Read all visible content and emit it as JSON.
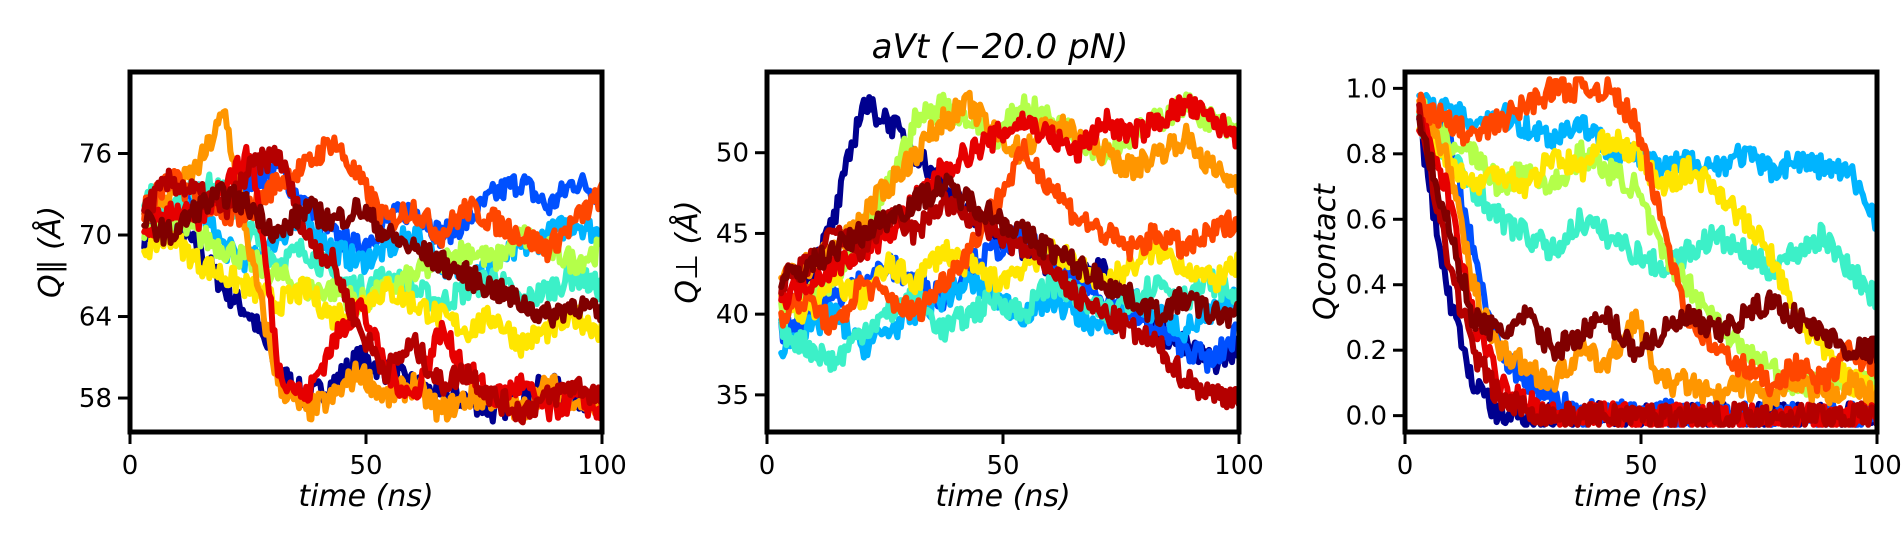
{
  "figure": {
    "title": "aVt (−20.0 pN)"
  },
  "chart_data": [
    {
      "type": "line",
      "title": "",
      "xlabel": "time (ns)",
      "ylabel": "Q∥ (Å)",
      "xlim": [
        0,
        100
      ],
      "ylim": [
        55.5,
        82
      ],
      "xticks": [
        0,
        50,
        100
      ],
      "yticks": [
        58,
        64,
        70,
        76
      ],
      "grid": false,
      "series": [
        {
          "color": "#00008f",
          "values": [
            70,
            71,
            69,
            66,
            64,
            60,
            58,
            59,
            61,
            60,
            59,
            58,
            58,
            57,
            58,
            59,
            58,
            58
          ]
        },
        {
          "color": "#0050ff",
          "values": [
            71,
            70,
            73,
            72,
            74,
            75,
            72,
            70,
            69,
            71,
            72,
            70,
            71,
            73,
            74,
            72,
            74,
            73
          ]
        },
        {
          "color": "#00b4ff",
          "values": [
            72,
            71,
            72,
            69,
            68,
            70,
            71,
            69,
            68,
            69,
            70,
            68,
            67,
            68,
            69,
            70,
            71,
            70
          ]
        },
        {
          "color": "#3cf0c8",
          "values": [
            73,
            72,
            74,
            73,
            70,
            68,
            69,
            67,
            66,
            67,
            66,
            65,
            66,
            67,
            65,
            66,
            67,
            66
          ]
        },
        {
          "color": "#b4ff4a",
          "values": [
            70,
            71,
            70,
            69,
            68,
            67,
            66,
            66,
            65,
            66,
            67,
            68,
            69,
            68,
            70,
            69,
            68,
            69
          ]
        },
        {
          "color": "#ffe600",
          "values": [
            69,
            70,
            68,
            67,
            66,
            65,
            66,
            64,
            65,
            66,
            65,
            64,
            63,
            64,
            62,
            63,
            64,
            63
          ]
        },
        {
          "color": "#ff9600",
          "values": [
            71,
            73,
            75,
            79,
            68,
            59,
            57,
            58,
            60,
            58,
            59,
            57,
            58,
            58,
            57,
            59,
            58,
            57
          ]
        },
        {
          "color": "#ff4600",
          "values": [
            72,
            74,
            73,
            71,
            72,
            74,
            75,
            77,
            74,
            71,
            72,
            70,
            72,
            71,
            70,
            69,
            71,
            73
          ]
        },
        {
          "color": "#e60000",
          "values": [
            70,
            72,
            71,
            74,
            76,
            60,
            58,
            62,
            65,
            60,
            58,
            63,
            60,
            58,
            59,
            57,
            58,
            57
          ]
        },
        {
          "color": "#b40000",
          "values": [
            72,
            74,
            73,
            72,
            75,
            76,
            70,
            68,
            63,
            60,
            62,
            59,
            60,
            58,
            57,
            58,
            59,
            58
          ]
        },
        {
          "color": "#800000",
          "values": [
            71,
            70,
            72,
            73,
            72,
            70,
            72,
            71,
            72,
            70,
            69,
            68,
            67,
            66,
            65,
            64,
            65,
            64
          ]
        }
      ]
    },
    {
      "type": "line",
      "title": "aVt (−20.0 pN)",
      "xlabel": "time (ns)",
      "ylabel": "Q⊥ (Å)",
      "xlim": [
        0,
        100
      ],
      "ylim": [
        32.7,
        55
      ],
      "xticks": [
        0,
        50,
        100
      ],
      "yticks": [
        35,
        40,
        45,
        50
      ],
      "grid": false,
      "series": [
        {
          "color": "#00008f",
          "values": [
            40,
            42,
            46,
            53,
            52,
            50,
            48,
            46,
            45,
            44,
            43,
            42,
            43,
            41,
            39,
            38,
            37,
            38
          ]
        },
        {
          "color": "#0050ff",
          "values": [
            39,
            40,
            41,
            42,
            43,
            42,
            41,
            43,
            44,
            45,
            43,
            42,
            41,
            40,
            39,
            38,
            37,
            39
          ]
        },
        {
          "color": "#00b4ff",
          "values": [
            38,
            39,
            40,
            38,
            39,
            40,
            41,
            42,
            41,
            40,
            41,
            40,
            39,
            41,
            40,
            39,
            40,
            41
          ]
        },
        {
          "color": "#3cf0c8",
          "values": [
            39,
            38,
            37,
            39,
            40,
            41,
            39,
            40,
            41,
            40,
            42,
            41,
            40,
            41,
            42,
            41,
            42,
            41
          ]
        },
        {
          "color": "#b4ff4a",
          "values": [
            40,
            41,
            42,
            45,
            48,
            52,
            53,
            52,
            51,
            53,
            52,
            51,
            50,
            51,
            52,
            53,
            52,
            51
          ]
        },
        {
          "color": "#ffe600",
          "values": [
            41,
            40,
            42,
            41,
            43,
            42,
            44,
            43,
            42,
            43,
            44,
            43,
            42,
            43,
            44,
            43,
            42,
            43
          ]
        },
        {
          "color": "#ff9600",
          "values": [
            42,
            43,
            44,
            46,
            48,
            50,
            52,
            53,
            51,
            50,
            52,
            51,
            50,
            49,
            50,
            51,
            49,
            48
          ]
        },
        {
          "color": "#ff4600",
          "values": [
            40,
            41,
            39,
            42,
            41,
            40,
            42,
            44,
            47,
            50,
            48,
            46,
            45,
            44,
            45,
            44,
            45,
            46
          ]
        },
        {
          "color": "#e60000",
          "values": [
            41,
            42,
            43,
            44,
            45,
            47,
            49,
            50,
            51,
            52,
            51,
            50,
            52,
            51,
            52,
            53,
            52,
            51
          ]
        },
        {
          "color": "#b40000",
          "values": [
            42,
            43,
            45,
            44,
            46,
            45,
            47,
            46,
            45,
            44,
            43,
            41,
            40,
            39,
            38,
            36,
            35,
            35
          ]
        },
        {
          "color": "#800000",
          "values": [
            42,
            43,
            44,
            45,
            46,
            47,
            48,
            47,
            46,
            45,
            44,
            43,
            42,
            41,
            40,
            41,
            40,
            40
          ]
        }
      ]
    },
    {
      "type": "line",
      "title": "",
      "xlabel": "time (ns)",
      "ylabel": "Qcontact",
      "xlim": [
        0,
        100
      ],
      "ylim": [
        -0.05,
        1.05
      ],
      "xticks": [
        0,
        50,
        100
      ],
      "yticks": [
        0.0,
        0.2,
        0.4,
        0.6,
        0.8,
        1.0
      ],
      "grid": false,
      "series": [
        {
          "color": "#00008f",
          "values": [
            0.9,
            0.4,
            0.1,
            0.0,
            0.0,
            0.0,
            0.0,
            0.0,
            0.0,
            0.0,
            0.0,
            0.0,
            0.0,
            0.0,
            0.0,
            0.0,
            0.0,
            0.0
          ]
        },
        {
          "color": "#0050ff",
          "values": [
            0.95,
            0.9,
            0.5,
            0.2,
            0.1,
            0.05,
            0.0,
            0.02,
            0.0,
            0.01,
            0.0,
            0.0,
            0.0,
            0.0,
            0.0,
            0.0,
            0.0,
            0.0
          ]
        },
        {
          "color": "#00b4ff",
          "values": [
            0.95,
            0.93,
            0.9,
            0.92,
            0.88,
            0.85,
            0.9,
            0.82,
            0.8,
            0.75,
            0.78,
            0.76,
            0.8,
            0.75,
            0.78,
            0.76,
            0.74,
            0.6
          ]
        },
        {
          "color": "#3cf0c8",
          "values": [
            0.9,
            0.8,
            0.7,
            0.6,
            0.55,
            0.5,
            0.6,
            0.55,
            0.5,
            0.45,
            0.5,
            0.55,
            0.5,
            0.45,
            0.5,
            0.55,
            0.45,
            0.35
          ]
        },
        {
          "color": "#b4ff4a",
          "values": [
            0.95,
            0.85,
            0.8,
            0.7,
            0.75,
            0.7,
            0.8,
            0.75,
            0.7,
            0.5,
            0.4,
            0.3,
            0.2,
            0.15,
            0.1,
            0.1,
            0.1,
            0.1
          ]
        },
        {
          "color": "#ffe600",
          "values": [
            0.9,
            0.8,
            0.7,
            0.75,
            0.7,
            0.8,
            0.75,
            0.85,
            0.8,
            0.7,
            0.75,
            0.7,
            0.6,
            0.5,
            0.3,
            0.2,
            0.1,
            0.1
          ]
        },
        {
          "color": "#ff9600",
          "values": [
            0.95,
            0.8,
            0.4,
            0.2,
            0.15,
            0.1,
            0.2,
            0.15,
            0.3,
            0.1,
            0.1,
            0.05,
            0.1,
            0.05,
            0.1,
            0.05,
            0.1,
            0.05
          ]
        },
        {
          "color": "#ff4600",
          "values": [
            0.95,
            0.9,
            0.85,
            0.9,
            0.95,
            1.0,
            1.0,
            1.0,
            0.9,
            0.6,
            0.3,
            0.2,
            0.15,
            0.1,
            0.15,
            0.1,
            0.2,
            0.15
          ]
        },
        {
          "color": "#e60000",
          "values": [
            0.9,
            0.7,
            0.3,
            0.1,
            0.05,
            0.0,
            0.0,
            0.0,
            0.0,
            0.0,
            0.0,
            0.0,
            0.0,
            0.0,
            0.0,
            0.0,
            0.0,
            0.0
          ]
        },
        {
          "color": "#b40000",
          "values": [
            0.95,
            0.5,
            0.2,
            0.05,
            0.02,
            0.0,
            0.0,
            0.0,
            0.0,
            0.0,
            0.0,
            0.0,
            0.0,
            0.0,
            0.0,
            0.0,
            0.0,
            0.0
          ]
        },
        {
          "color": "#800000",
          "values": [
            0.9,
            0.6,
            0.3,
            0.25,
            0.3,
            0.2,
            0.25,
            0.3,
            0.2,
            0.25,
            0.3,
            0.25,
            0.3,
            0.35,
            0.3,
            0.25,
            0.2,
            0.2
          ]
        }
      ]
    }
  ]
}
